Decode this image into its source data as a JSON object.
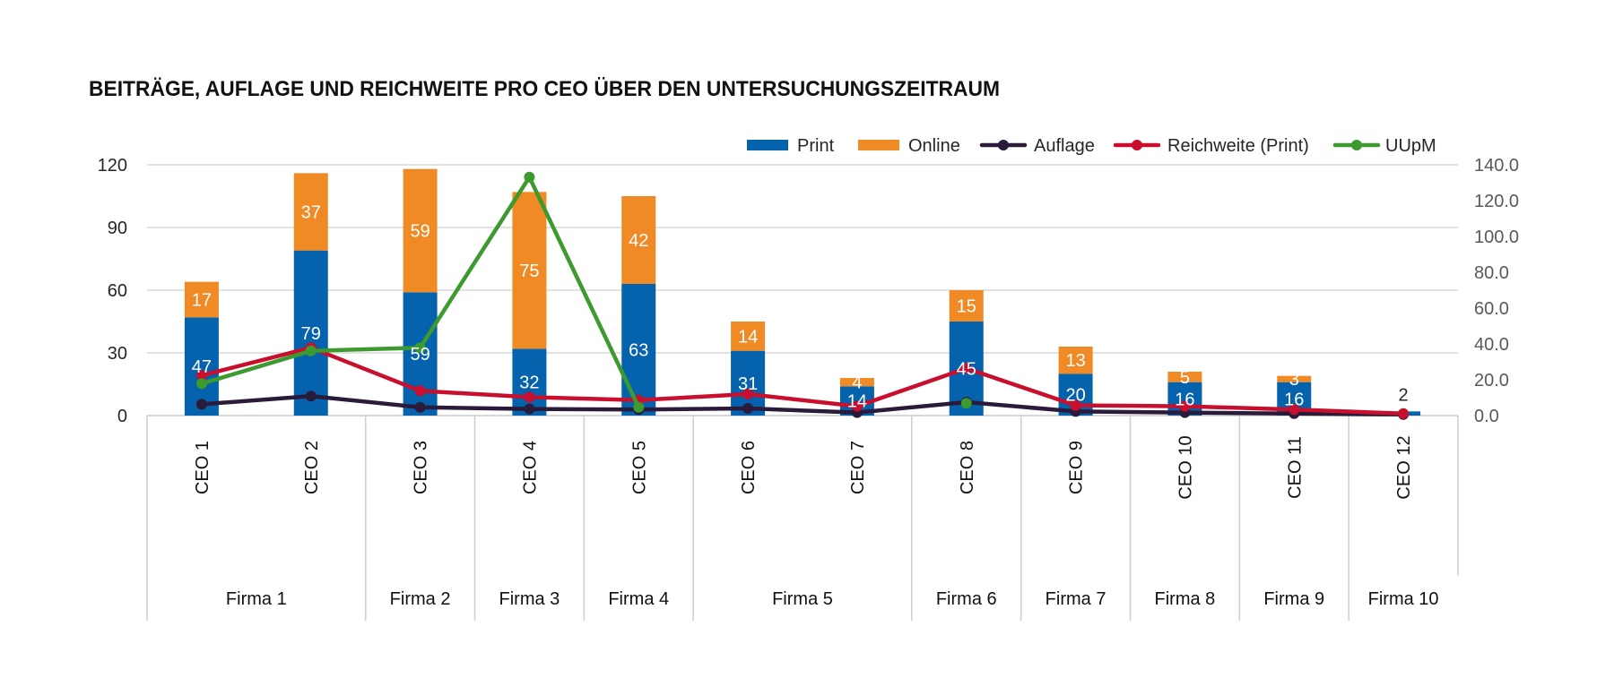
{
  "chart_data": {
    "type": "bar",
    "title": "BEITRÄGE, AUFLAGE UND REICHWEITE PRO CEO ÜBER DEN UNTERSUCHUNGSZEITRAUM",
    "categories": [
      "CEO 1",
      "CEO 2",
      "CEO 3",
      "CEO 4",
      "CEO 5",
      "CEO 6",
      "CEO 7",
      "CEO 8",
      "CEO 9",
      "CEO 10",
      "CEO 11",
      "CEO 12"
    ],
    "groups": [
      {
        "name": "Firma 1",
        "ceo_count": 2
      },
      {
        "name": "Firma 2",
        "ceo_count": 1
      },
      {
        "name": "Firma 3",
        "ceo_count": 1
      },
      {
        "name": "Firma 4",
        "ceo_count": 1
      },
      {
        "name": "Firma 5",
        "ceo_count": 2
      },
      {
        "name": "Firma 6",
        "ceo_count": 1
      },
      {
        "name": "Firma 7",
        "ceo_count": 1
      },
      {
        "name": "Firma 8",
        "ceo_count": 1
      },
      {
        "name": "Firma 9",
        "ceo_count": 1
      },
      {
        "name": "Firma 10",
        "ceo_count": 1
      }
    ],
    "y_left": {
      "range": [
        0,
        120
      ],
      "ticks": [
        "0",
        "30",
        "60",
        "90",
        "120"
      ]
    },
    "y_right": {
      "range": [
        0,
        140
      ],
      "ticks": [
        "0.0",
        "20.0",
        "40.0",
        "60.0",
        "80.0",
        "100.0",
        "120.0",
        "140.0"
      ]
    },
    "grid": true,
    "legend_position": "top-right",
    "series": [
      {
        "name": "Print",
        "type": "bar",
        "stacked": true,
        "axis": "left",
        "color": "#0562ad",
        "data_labels": true,
        "values": [
          47,
          79,
          59,
          32,
          63,
          31,
          14,
          45,
          20,
          16,
          16,
          2
        ]
      },
      {
        "name": "Online",
        "type": "bar",
        "stacked": true,
        "axis": "left",
        "color": "#f08a24",
        "data_labels": true,
        "values": [
          17,
          37,
          59,
          75,
          42,
          14,
          4,
          15,
          13,
          5,
          3,
          null
        ]
      },
      {
        "name": "Auflage",
        "type": "line",
        "axis": "right",
        "color": "#2b1b3b",
        "values": [
          6.3,
          10.9,
          4.6,
          3.7,
          3.4,
          4.0,
          1.7,
          7.5,
          2.3,
          1.7,
          1.1,
          0.6
        ]
      },
      {
        "name": "Reichweite (Print)",
        "type": "line",
        "axis": "right",
        "color": "#c8102e",
        "values": [
          22.4,
          37.9,
          13.8,
          10.3,
          8.6,
          12.0,
          5.2,
          26.4,
          5.7,
          5.2,
          3.4,
          1.1
        ]
      },
      {
        "name": "UUpM",
        "type": "line",
        "axis": "right",
        "color": "#3c9a2f",
        "values": [
          17.8,
          36.1,
          37.9,
          133.1,
          4.6,
          null,
          null,
          6.9,
          null,
          null,
          null,
          null
        ]
      }
    ]
  }
}
